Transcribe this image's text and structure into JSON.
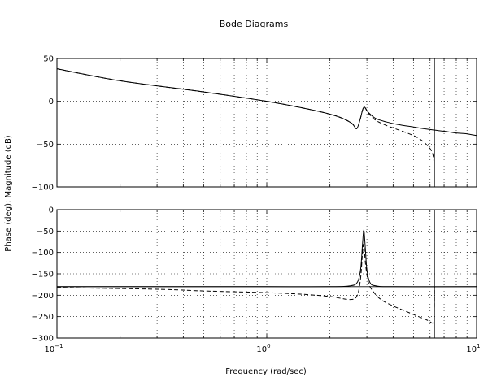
{
  "figure": {
    "title": "Bode Diagrams",
    "xlabel": "Frequency (rad/sec)",
    "ylabel": "Phase (deg); Magnitude (dB)",
    "background": "#ffffff",
    "line_color": "#000000"
  },
  "chart_data": [
    {
      "type": "line",
      "panel": "magnitude",
      "xscale": "log",
      "xlim": [
        0.1,
        10
      ],
      "ylim": [
        -100,
        50
      ],
      "yticks": [
        50,
        0,
        -50,
        -100
      ],
      "ytick_labels": [
        "50",
        "0",
        "−50",
        "−100"
      ],
      "grid": true,
      "reference_lines": [
        {
          "orientation": "vertical",
          "x": 6.3
        }
      ],
      "series": [
        {
          "style": "solid",
          "x": [
            0.1,
            0.2,
            0.5,
            1.0,
            1.5,
            2.0,
            2.3,
            2.55,
            2.68,
            2.78,
            2.9,
            3.05,
            3.3,
            3.7,
            4.2,
            5.0,
            6.0,
            7.0,
            8.0,
            9.0,
            10.0
          ],
          "y": [
            38,
            24,
            11,
            0,
            -8,
            -15,
            -20,
            -26,
            -32,
            -22,
            -7,
            -13,
            -20,
            -24,
            -27,
            -30,
            -33,
            -35,
            -37,
            -38,
            -40
          ]
        },
        {
          "style": "dashed",
          "x": [
            0.1,
            0.2,
            0.5,
            1.0,
            1.5,
            2.0,
            2.3,
            2.55,
            2.68,
            2.78,
            2.9,
            3.05,
            3.3,
            3.7,
            4.2,
            5.0,
            5.5,
            5.9,
            6.1,
            6.2,
            6.28
          ],
          "y": [
            38,
            24,
            11,
            0,
            -8,
            -15,
            -20,
            -26,
            -32,
            -22,
            -7,
            -14,
            -22,
            -28,
            -33,
            -40,
            -46,
            -53,
            -58,
            -63,
            -72
          ]
        }
      ]
    },
    {
      "type": "line",
      "panel": "phase",
      "xscale": "log",
      "xlim": [
        0.1,
        10
      ],
      "ylim": [
        -300,
        0
      ],
      "yticks": [
        0,
        -50,
        -100,
        -150,
        -200,
        -250,
        -300
      ],
      "ytick_labels": [
        "0",
        "−50",
        "−100",
        "−150",
        "−200",
        "−250",
        "−300"
      ],
      "xticks": [
        0.1,
        1,
        10
      ],
      "xtick_labels": [
        {
          "base": "10",
          "exp": "−1"
        },
        {
          "base": "10",
          "exp": "0"
        },
        {
          "base": "10",
          "exp": "1"
        }
      ],
      "grid": true,
      "reference_lines": [
        {
          "orientation": "vertical",
          "x": 6.3
        },
        {
          "orientation": "horizontal",
          "y": -180
        }
      ],
      "series": [
        {
          "style": "solid",
          "x": [
            0.1,
            0.5,
            1.0,
            2.0,
            2.5,
            2.7,
            2.8,
            2.86,
            2.9,
            2.94,
            3.0,
            3.1,
            3.3,
            4.0,
            10.0
          ],
          "y": [
            -180,
            -180,
            -180,
            -180,
            -178,
            -170,
            -140,
            -80,
            -47,
            -80,
            -140,
            -170,
            -178,
            -180,
            -180
          ]
        },
        {
          "style": "dashed",
          "x": [
            0.1,
            0.3,
            0.5,
            1.0,
            1.5,
            2.0,
            2.5,
            2.7,
            2.8,
            2.86,
            2.9,
            2.96,
            3.05,
            3.2,
            3.5,
            4.0,
            5.0,
            5.8,
            6.2,
            6.28,
            6.3
          ],
          "y": [
            -182,
            -186,
            -190,
            -194,
            -198,
            -203,
            -210,
            -200,
            -160,
            -100,
            -82,
            -130,
            -170,
            -190,
            -210,
            -225,
            -245,
            -258,
            -265,
            -250,
            -180
          ]
        }
      ]
    }
  ]
}
